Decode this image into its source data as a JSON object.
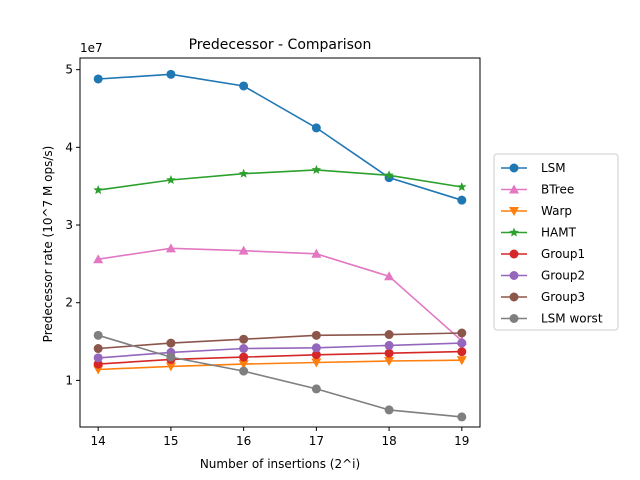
{
  "chart_data": {
    "type": "line",
    "title": "Predecessor - Comparison",
    "xlabel": "Number of insertions (2^i)",
    "ylabel": "Predecessor rate (10^7 M ops/s)",
    "y_offset_label": "1e7",
    "x": [
      14,
      15,
      16,
      17,
      18,
      19
    ],
    "x_ticks": [
      "14",
      "15",
      "16",
      "17",
      "18",
      "19"
    ],
    "y_ticks": [
      {
        "value": 1,
        "label": "1"
      },
      {
        "value": 2,
        "label": "2"
      },
      {
        "value": 3,
        "label": "3"
      },
      {
        "value": 4,
        "label": "4"
      },
      {
        "value": 5,
        "label": "5"
      }
    ],
    "xlim": [
      13.75,
      19.25
    ],
    "ylim": [
      0.4,
      5.15
    ],
    "grid": false,
    "legend_position": "right",
    "series": [
      {
        "name": "LSM",
        "color": "#1f77b4",
        "marker": "circle",
        "values": [
          4.88,
          4.94,
          4.79,
          4.25,
          3.61,
          3.32
        ]
      },
      {
        "name": "BTree",
        "color": "#e377c2",
        "marker": "triangle-up",
        "values": [
          2.56,
          2.7,
          2.67,
          2.63,
          2.34,
          1.51
        ]
      },
      {
        "name": "Warp",
        "color": "#ff7f0e",
        "marker": "triangle-down",
        "values": [
          1.14,
          1.18,
          1.21,
          1.23,
          1.25,
          1.26
        ]
      },
      {
        "name": "HAMT",
        "color": "#2ca02c",
        "marker": "star",
        "values": [
          3.45,
          3.58,
          3.66,
          3.71,
          3.64,
          3.49
        ]
      },
      {
        "name": "Group1",
        "color": "#d62728",
        "marker": "circle",
        "values": [
          1.21,
          1.27,
          1.3,
          1.33,
          1.35,
          1.37
        ]
      },
      {
        "name": "Group2",
        "color": "#9467bd",
        "marker": "circle",
        "values": [
          1.29,
          1.36,
          1.41,
          1.42,
          1.45,
          1.48
        ]
      },
      {
        "name": "Group3",
        "color": "#8c564b",
        "marker": "circle",
        "values": [
          1.41,
          1.48,
          1.53,
          1.58,
          1.59,
          1.61
        ]
      },
      {
        "name": "LSM worst",
        "color": "#7f7f7f",
        "marker": "circle",
        "values": [
          1.58,
          1.3,
          1.12,
          0.89,
          0.62,
          0.53
        ]
      }
    ]
  }
}
